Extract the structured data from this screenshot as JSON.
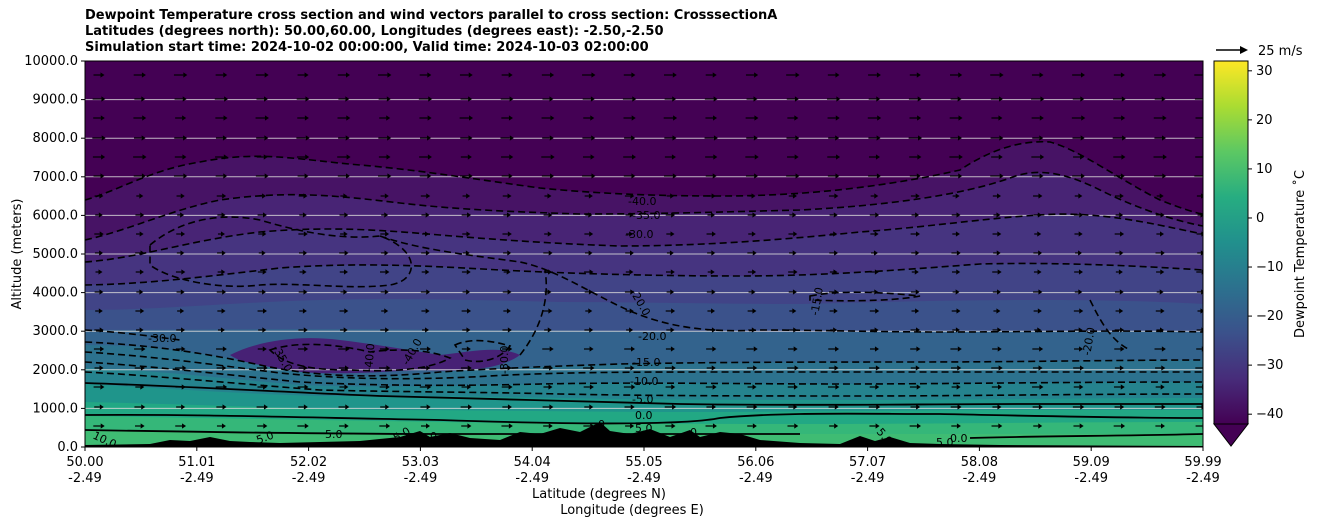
{
  "chart_data": {
    "type": "heatmap",
    "title_lines": [
      "Dewpoint Temperature cross section and wind vectors parallel to cross section: CrosssectionA",
      "Latitudes (degrees north): 50.00,60.00, Longitudes (degrees east): -2.50,-2.50",
      "Simulation start time: 2024-10-02 00:00:00, Valid time: 2024-10-03 02:00:00"
    ],
    "ylabel": "Altitude (meters)",
    "xlabel_lat": "Latitude (degrees N)",
    "xlabel_lon": "Longitude (degrees E)",
    "ylim": [
      0,
      10000
    ],
    "yticks": [
      "0.0",
      "1000.0",
      "2000.0",
      "3000.0",
      "4000.0",
      "5000.0",
      "6000.0",
      "7000.0",
      "8000.0",
      "9000.0",
      "10000.0"
    ],
    "xticks_lat": [
      "50.00",
      "51.01",
      "52.02",
      "53.03",
      "54.04",
      "55.05",
      "56.06",
      "57.07",
      "58.08",
      "59.09",
      "59.99"
    ],
    "xticks_lon": [
      "-2.49",
      "-2.49",
      "-2.49",
      "-2.49",
      "-2.49",
      "-2.49",
      "-2.49",
      "-2.49",
      "-2.49",
      "-2.49",
      "-2.49"
    ],
    "grid_horizontal": true,
    "colorbar": {
      "label": "Dewpoint Temperature ˚C",
      "range": [
        -42,
        32
      ],
      "ticks": [
        "30",
        "20",
        "10",
        "0",
        "−10",
        "−20",
        "−30",
        "−40"
      ],
      "extend": "min",
      "colors": [
        "#440154",
        "#472c7a",
        "#3b518b",
        "#2c718e",
        "#21908d",
        "#27ad81",
        "#5cc863",
        "#aadc32",
        "#fde725"
      ]
    },
    "quiver_key_label": "25 m/s",
    "contour_labels": [
      "-40.0",
      "-35.0",
      "-30.0",
      "-30.0",
      "-20.0",
      "-15.0",
      "-20.0",
      "-20.0",
      "-15.0",
      "-10.0",
      "-5.0",
      "0.0",
      "5.0",
      "-35.0",
      "-40.0",
      "-40.0",
      "-30.0",
      "10.0",
      "5.0",
      "5.0",
      "5.0",
      "0",
      "0",
      "5.0",
      "0",
      "5.0",
      "0.0"
    ],
    "dewpoint_levels_c": [
      {
        "altitude_m": 500,
        "dewpoint_c": 10
      },
      {
        "altitude_m": 1000,
        "dewpoint_c": 0
      },
      {
        "altitude_m": 1500,
        "dewpoint_c": -5
      },
      {
        "altitude_m": 2000,
        "dewpoint_c": -15
      },
      {
        "altitude_m": 3000,
        "dewpoint_c": -20
      },
      {
        "altitude_m": 4000,
        "dewpoint_c": -25
      },
      {
        "altitude_m": 5000,
        "dewpoint_c": -30
      },
      {
        "altitude_m": 6000,
        "dewpoint_c": -35
      },
      {
        "altitude_m": 7000,
        "dewpoint_c": -40
      }
    ]
  }
}
